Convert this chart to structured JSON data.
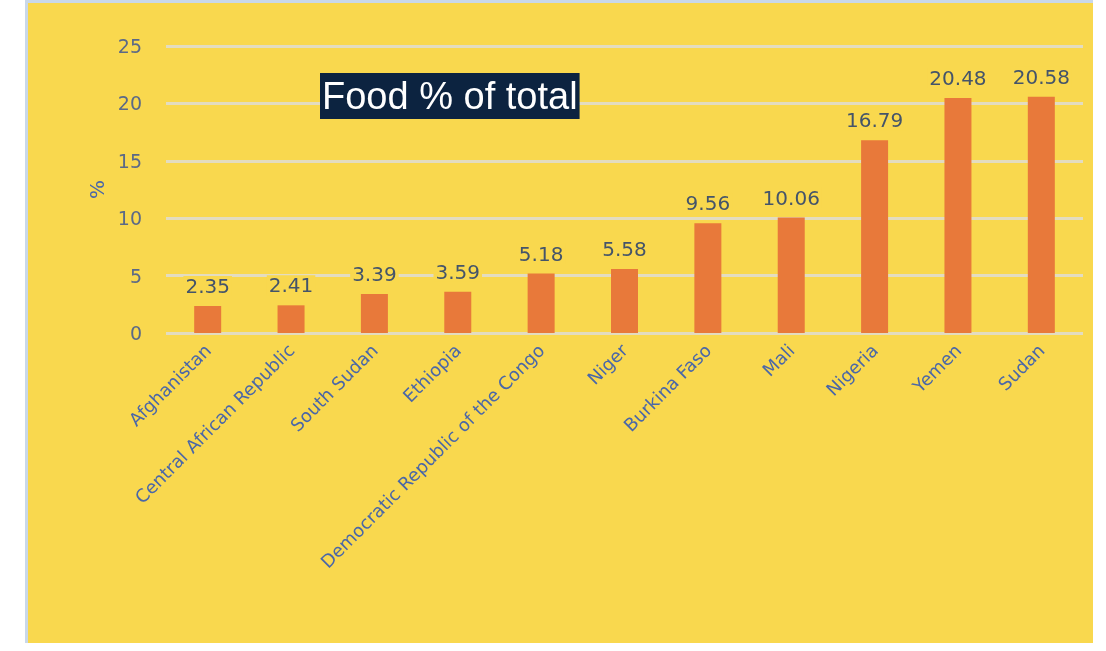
{
  "chart_data": {
    "type": "bar",
    "title": "Food % of total",
    "ylabel": "%",
    "categories": [
      "Afghanistan",
      "Central African Republic",
      "South Sudan",
      "Ethiopia",
      "Democratic Republic of the Congo",
      "Niger",
      "Burkina Faso",
      "Mali",
      "Nigeria",
      "Yemen",
      "Sudan"
    ],
    "values": [
      2.35,
      2.41,
      3.39,
      3.59,
      5.18,
      5.58,
      9.56,
      10.06,
      16.79,
      20.48,
      20.58
    ],
    "color": "#e8793a",
    "ylim": [
      0,
      25
    ],
    "yticks": [
      0,
      5,
      10,
      15,
      20,
      25
    ],
    "grid": "y",
    "data_labels": true
  }
}
